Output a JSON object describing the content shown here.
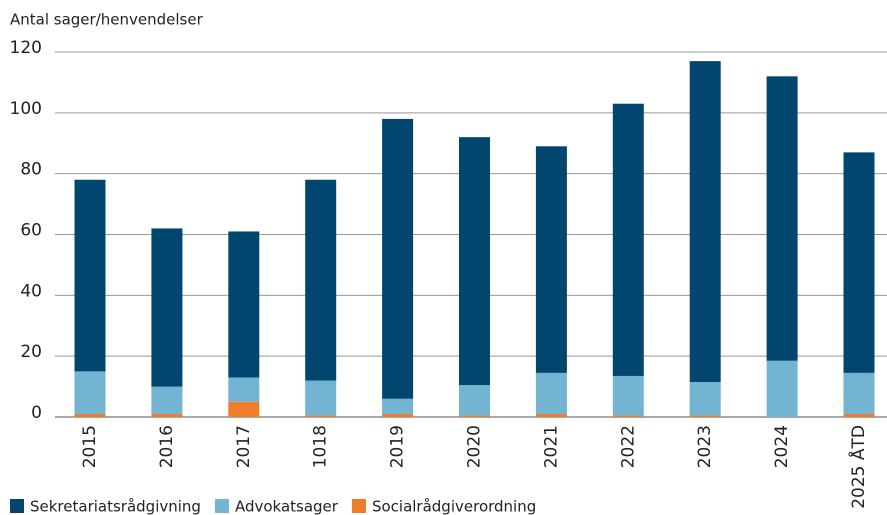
{
  "chart_data": {
    "type": "bar",
    "stacked": true,
    "y_axis_label": "Antal sager/henvendelser",
    "categories": [
      "2015",
      "2016",
      "2017",
      "1018",
      "2019",
      "2020",
      "2021",
      "2022",
      "2023",
      "2024",
      "2025 ÅTD"
    ],
    "series": [
      {
        "name": "Socialrådgiverordning",
        "color": "#ef7d2e",
        "values": [
          1,
          1,
          5,
          0.5,
          1,
          0.5,
          1,
          0.5,
          0.5,
          0,
          1
        ]
      },
      {
        "name": "Advokatsager",
        "color": "#72b4d1",
        "values": [
          14,
          9,
          8,
          11.5,
          5,
          10,
          13.5,
          13,
          11,
          18.5,
          13.5
        ]
      },
      {
        "name": "Sekretariatsrådgivning",
        "color": "#00466e",
        "values": [
          63,
          52,
          48,
          66,
          92,
          81.5,
          74.5,
          89.5,
          105.5,
          93.5,
          72.5
        ]
      }
    ],
    "legend_order": [
      2,
      1,
      0
    ],
    "ylim": [
      0,
      120
    ],
    "yticks": [
      0,
      20,
      40,
      60,
      80,
      100,
      120
    ],
    "grid": true
  }
}
